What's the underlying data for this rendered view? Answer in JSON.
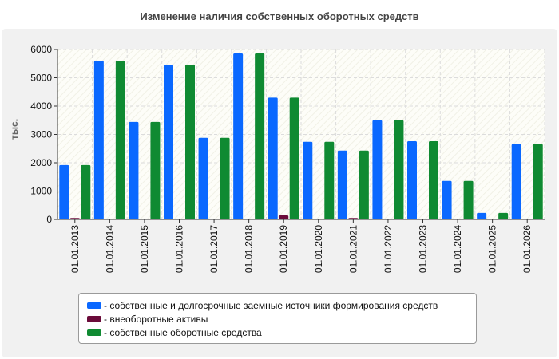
{
  "chart_data": {
    "type": "bar",
    "title": "Изменение наличия собственных оборотных средств",
    "ylabel": "тыс.",
    "ylim": [
      0,
      6000
    ],
    "yticks": [
      0,
      1000,
      2000,
      3000,
      4000,
      5000,
      6000
    ],
    "grid": true,
    "legend_position": "bottom",
    "categories": [
      "01.01.2013",
      "01.01.2014",
      "01.01.2015",
      "01.01.2016",
      "01.01.2017",
      "01.01.2018",
      "01.01.2019",
      "01.01.2020",
      "01.01.2021",
      "01.01.2022",
      "01.01.2023",
      "01.01.2024",
      "01.01.2025",
      "01.01.2026"
    ],
    "series": [
      {
        "name": "- собственные и долгосрочные заемные источники формирования средств",
        "color": "#0a68ff",
        "values": [
          1920,
          5600,
          3440,
          5460,
          2880,
          5860,
          4300,
          2740,
          2430,
          3500,
          2760,
          1360,
          230,
          2660
        ]
      },
      {
        "name": "- внеоборотные активы",
        "color": "#6b0b3a",
        "values": [
          50,
          20,
          20,
          20,
          20,
          20,
          140,
          20,
          50,
          20,
          20,
          20,
          20,
          20
        ]
      },
      {
        "name": "- собственные оборотные средства",
        "color": "#0f8a32",
        "values": [
          1920,
          5600,
          3440,
          5460,
          2880,
          5860,
          4300,
          2740,
          2430,
          3500,
          2760,
          1360,
          230,
          2660
        ]
      }
    ]
  }
}
